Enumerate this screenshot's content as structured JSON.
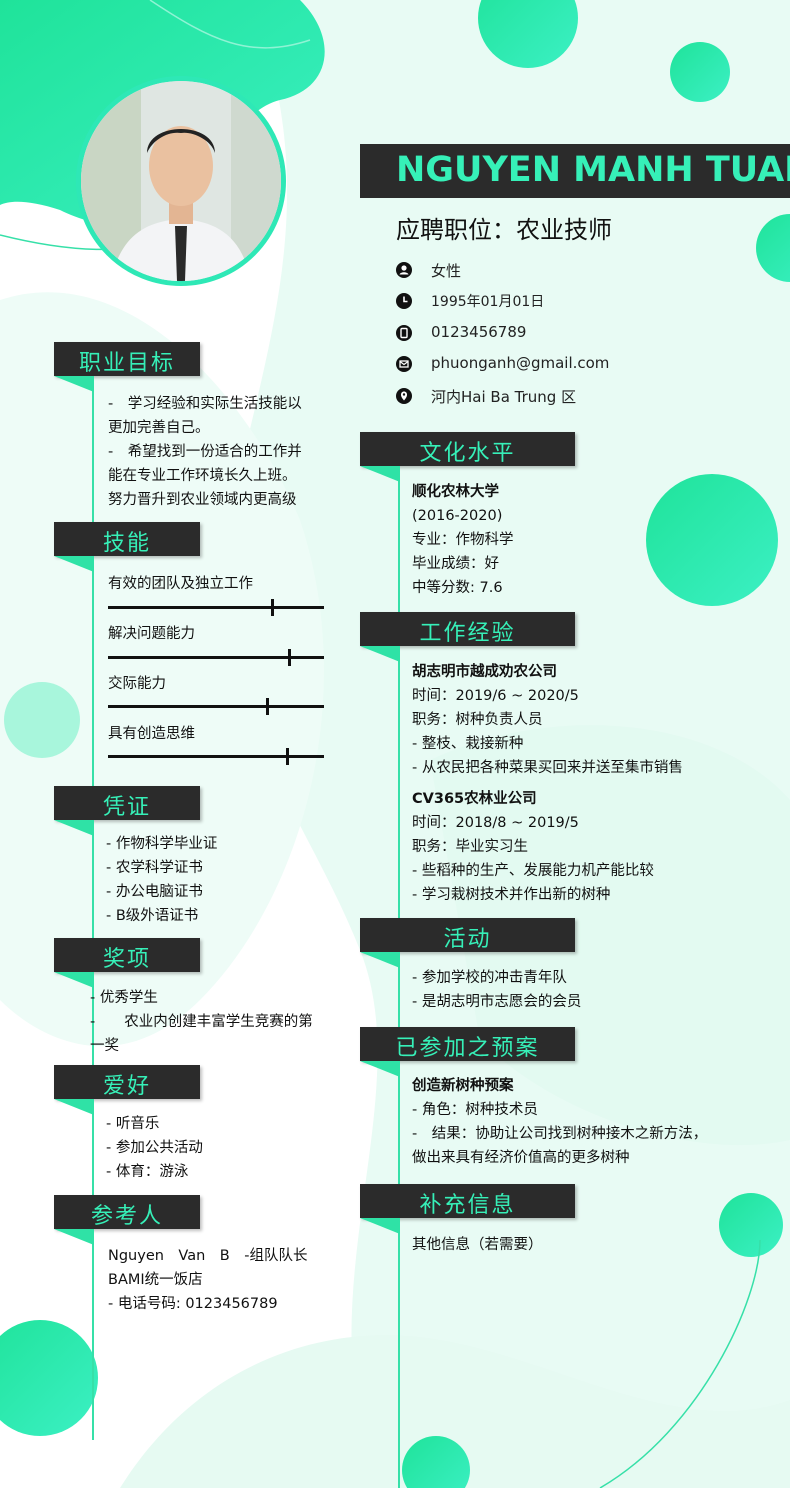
{
  "profile": {
    "name": "NGUYEN MANH TUAN",
    "position": "应聘职位：农业技师",
    "gender": "女性",
    "birthday": "1995年01月01日",
    "phone": "0123456789",
    "email": "phuonganh@gmail.com",
    "address": "河内Hai Ba Trung 区"
  },
  "left": {
    "objective": {
      "title": "职业目标",
      "lines": [
        "-　学习经验和实际生活技能以",
        "更加完善自己。",
        "-　希望找到一份适合的工作并",
        "能在专业工作环境长久上班。",
        "努力晋升到农业领域内更高级"
      ]
    },
    "skills": {
      "title": "技能",
      "items": [
        {
          "label": "有效的团队及独立工作",
          "level": 0.76
        },
        {
          "label": "解决问题能力",
          "level": 0.84
        },
        {
          "label": "交际能力",
          "level": 0.74
        },
        {
          "label": "具有创造思维",
          "level": 0.83
        }
      ]
    },
    "certificates": {
      "title": "凭证",
      "lines": [
        "- 作物科学毕业证",
        "- 农学科学证书",
        "-  办公电脑证书",
        "- B级外语证书"
      ]
    },
    "awards": {
      "title": "奖项",
      "lines": [
        "- 优秀学生",
        "-　　农业内创建丰富学生竞赛的第",
        "一奖"
      ]
    },
    "hobbies": {
      "title": "爱好",
      "lines": [
        "- 听音乐",
        "- 参加公共活动",
        "- 体育：游泳"
      ]
    },
    "references": {
      "title": "参考人",
      "lines": [
        "Nguyen　Van　B　-组队队长",
        "BAMI统一饭店",
        "- 电话号码: 0123456789"
      ]
    }
  },
  "right": {
    "education": {
      "title": "文化水平",
      "school": "顺化农林大学",
      "years": "(2016-2020)",
      "major": "专业：作物科学",
      "grade": "毕业成绩：好",
      "score": "中等分数: 7.6"
    },
    "experience": {
      "title": "工作经验",
      "jobs": [
        {
          "company": "胡志明市越成劝农公司",
          "time": "时间：2019/6 ~ 2020/5",
          "role": "职务：树种负责人员",
          "duties": [
            "- 整枝、栽接新种",
            "- 从农民把各种菜果买回来并送至集市销售"
          ]
        },
        {
          "company": "CV365农林业公司",
          "time": "时间：2018/8 ~ 2019/5",
          "role": "职务：毕业实习生",
          "duties": [
            "- 些稻种的生产、发展能力机产能比较",
            "- 学习栽树技术并作出新的树种"
          ]
        }
      ]
    },
    "activities": {
      "title": "活动",
      "lines": [
        "- 参加学校的冲击青年队",
        "- 是胡志明市志愿会的会员"
      ]
    },
    "projects": {
      "title": "已参加之预案",
      "name": "创造新树种预案",
      "lines": [
        "- 角色：树种技术员",
        "-　结果：协助让公司找到树种接木之新方法，",
        "做出来具有经济价值高的更多树种"
      ]
    },
    "extra": {
      "title": "补充信息",
      "lines": [
        "其他信息（若需要）"
      ]
    }
  },
  "colors": {
    "accent": "#36f0b8",
    "dark": "#2b2b2b",
    "mint_bg": "#e6fbf3"
  }
}
